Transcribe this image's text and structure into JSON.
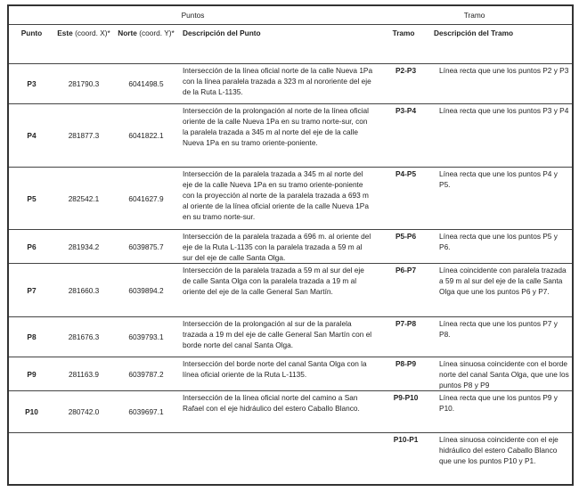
{
  "groups": {
    "puntos": "Puntos",
    "tramo": "Tramo"
  },
  "headers": {
    "punto": "Punto",
    "este_bold": "Este",
    "este_rest": "(coord. X)*",
    "norte_bold": "Norte",
    "norte_rest": "(coord. Y)*",
    "descripcion_punto": "Descripción  del Punto",
    "tramo": "Tramo",
    "descripcion_tramo": "Descripción  del Tramo"
  },
  "rows": [
    {
      "punto": "P3",
      "este": "281790.3",
      "norte": "6041498.5",
      "descripcion": "Intersección de la línea oficial norte de la calle Nueva 1Pa con la línea paralela trazada a 323 m al nororiente del eje de la Ruta L-1135.",
      "tramo": "P2-P3",
      "descripcion_tramo": "Línea recta que une los puntos P2 y P3"
    },
    {
      "punto": "P4",
      "este": "281877.3",
      "norte": "6041822.1",
      "descripcion": "Intersección de la prolongación al norte de la línea oficial oriente de la calle Nueva 1Pa en su tramo norte-sur, con la paralela trazada a 345 m al norte del eje de la calle Nueva 1Pa en su tramo oriente-poniente.",
      "tramo": "P3-P4",
      "descripcion_tramo": "Línea recta que une los puntos P3 y P4"
    },
    {
      "punto": "P5",
      "este": "282542.1",
      "norte": "6041627.9",
      "descripcion": "Intersección de la paralela trazada a 345 m al norte del eje de la calle Nueva 1Pa en su tramo oriente-poniente con la proyección al norte de la paralela trazada a 693 m al oriente de la línea oficial oriente de la calle Nueva 1Pa en su tramo norte-sur.",
      "tramo": "P4-P5",
      "descripcion_tramo": "Línea recta que une los puntos P4 y P5."
    },
    {
      "punto": "P6",
      "este": "281934.2",
      "norte": "6039875.7",
      "descripcion": "Intersección de la paralela trazada a 696 m. al oriente del eje de la Ruta L-1135 con la paralela trazada a 59 m al sur del eje de calle Santa Olga.",
      "tramo": "P5-P6",
      "descripcion_tramo": "Línea recta que une los puntos P5 y P6."
    },
    {
      "punto": "P7",
      "este": "281660.3",
      "norte": "6039894.2",
      "descripcion": "Intersección de la paralela trazada a 59 m al sur del eje de calle Santa Olga con la paralela trazada a 19 m al oriente del eje de la calle General San Martín.",
      "tramo": "P6-P7",
      "descripcion_tramo": "Línea coincidente con paralela trazada a 59 m al sur del eje de la calle Santa Olga que une los puntos P6 y P7."
    },
    {
      "punto": "P8",
      "este": "281676.3",
      "norte": "6039793.1",
      "descripcion": "Intersección de la prolongación al sur de la paralela trazada a 19 m del eje de calle General San Martín con el borde norte del canal Santa Olga.",
      "tramo": "P7-P8",
      "descripcion_tramo": "Línea recta que une los puntos P7 y P8."
    },
    {
      "punto": "P9",
      "este": "281163.9",
      "norte": "6039787.2",
      "descripcion": "Intersección del borde norte del canal Santa Olga con la línea oficial oriente de la Ruta L-1135.",
      "tramo": "P8-P9",
      "descripcion_tramo": "Línea sinuosa coincidente con el borde norte del canal Santa Olga, que une los puntos P8 y P9"
    },
    {
      "punto": "P10",
      "este": "280742.0",
      "norte": "6039697.1",
      "descripcion": "Intersección de la línea oficial norte del camino a San Rafael con el eje hidráulico del estero Caballo Blanco.",
      "tramo": "P9-P10",
      "descripcion_tramo": "Línea recta que une los puntos P9 y P10."
    },
    {
      "punto": "",
      "este": "",
      "norte": "",
      "descripcion": "",
      "tramo": "P10-P1",
      "descripcion_tramo": "Línea sinuosa coincidente con el eje hidráulico del estero Caballo Blanco que une  los puntos P10 y P1."
    }
  ]
}
